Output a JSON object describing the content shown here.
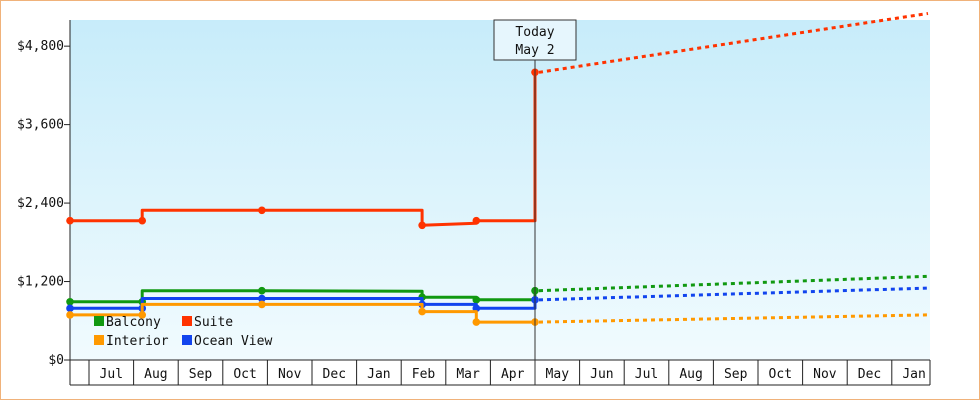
{
  "chart_data": {
    "type": "line",
    "y_ticks": [
      "$0",
      "$1,200",
      "$2,400",
      "$3,600",
      "$4,800"
    ],
    "y_tick_values": [
      0,
      1200,
      2400,
      3600,
      4800
    ],
    "ylim": [
      0,
      5200
    ],
    "months": [
      "Jul",
      "Aug",
      "Sep",
      "Oct",
      "Nov",
      "Dec",
      "Jan",
      "Feb",
      "Mar",
      "Apr",
      "May",
      "Jun",
      "Jul",
      "Aug",
      "Sep",
      "Oct",
      "Nov",
      "Dec",
      "Jan"
    ],
    "today": {
      "line1": "Today",
      "line2": "May 2"
    },
    "legend": [
      "Balcony",
      "Suite",
      "Interior",
      "Ocean View"
    ],
    "grid": false,
    "series": [
      {
        "name": "Suite",
        "color": "#ff3300",
        "history": [
          [
            0,
            2130
          ],
          [
            1.6,
            2130
          ],
          [
            1.6,
            2290
          ],
          [
            4.25,
            2290
          ],
          [
            7.8,
            2290
          ],
          [
            7.8,
            2060
          ],
          [
            9.0,
            2090
          ],
          [
            9.0,
            2130
          ],
          [
            10.3,
            2130
          ],
          [
            10.3,
            4400
          ]
        ],
        "forecast_end": 5300
      },
      {
        "name": "Balcony",
        "color": "#119911",
        "history": [
          [
            0,
            890
          ],
          [
            1.6,
            890
          ],
          [
            1.6,
            1060
          ],
          [
            4.25,
            1060
          ],
          [
            7.8,
            1050
          ],
          [
            7.8,
            960
          ],
          [
            9.0,
            960
          ],
          [
            9.0,
            920
          ],
          [
            10.3,
            920
          ],
          [
            10.3,
            1060
          ]
        ],
        "forecast_end": 1280
      },
      {
        "name": "Ocean View",
        "color": "#1144ee",
        "history": [
          [
            0,
            790
          ],
          [
            1.6,
            790
          ],
          [
            1.6,
            940
          ],
          [
            4.25,
            940
          ],
          [
            7.8,
            940
          ],
          [
            7.8,
            850
          ],
          [
            9.0,
            850
          ],
          [
            9.0,
            790
          ],
          [
            10.3,
            790
          ],
          [
            10.3,
            920
          ]
        ],
        "forecast_end": 1100
      },
      {
        "name": "Interior",
        "color": "#ff9900",
        "history": [
          [
            0,
            690
          ],
          [
            1.6,
            690
          ],
          [
            1.6,
            850
          ],
          [
            4.25,
            850
          ],
          [
            7.8,
            850
          ],
          [
            7.8,
            740
          ],
          [
            9.0,
            740
          ],
          [
            9.0,
            580
          ],
          [
            10.3,
            580
          ]
        ],
        "forecast_end": 690
      }
    ]
  }
}
